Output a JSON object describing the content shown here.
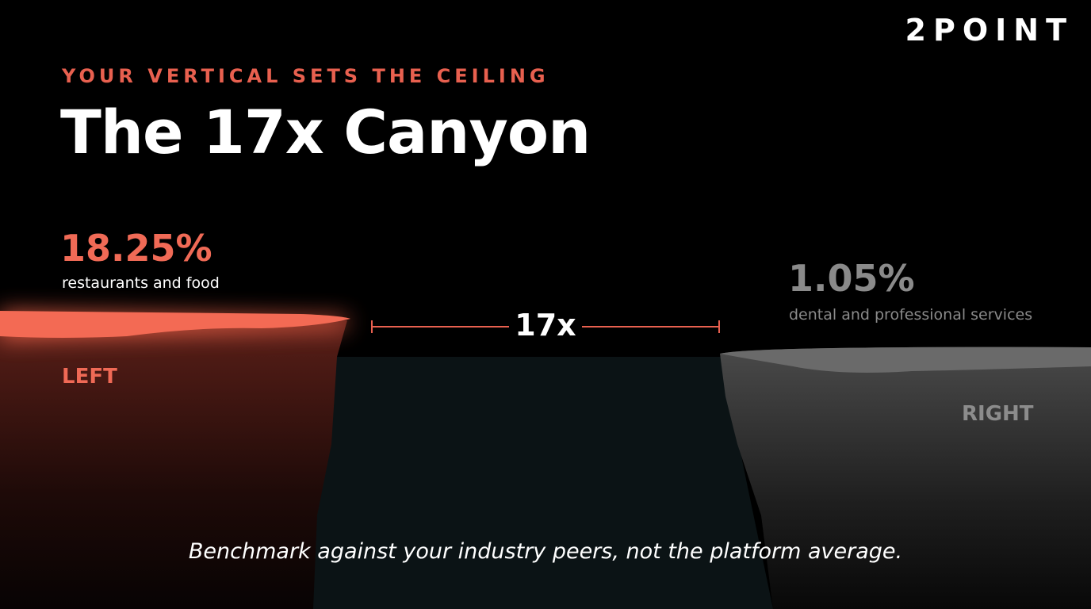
{
  "brand": "2POINT",
  "eyebrow": "YOUR VERTICAL SETS THE CEILING",
  "title": "The 17x Canyon",
  "left": {
    "value": "18.25%",
    "label": "restaurants and food",
    "tag": "LEFT"
  },
  "right": {
    "value": "1.05%",
    "label": "dental and professional services",
    "tag": "RIGHT"
  },
  "gap": "17x",
  "footer": "Benchmark against your industry peers, not the platform average."
}
